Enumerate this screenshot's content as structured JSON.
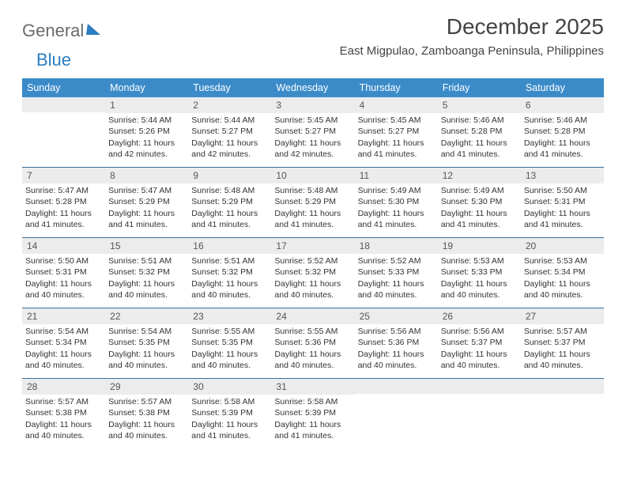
{
  "logo": {
    "text1": "General",
    "text2": "Blue"
  },
  "title": "December 2025",
  "subtitle": "East Migpulao, Zamboanga Peninsula, Philippines",
  "colors": {
    "header_bg": "#3b8bc9",
    "header_text": "#ffffff",
    "daynum_bg": "#ececec",
    "row_border": "#3b6f9a",
    "logo_gray": "#6b6b6b",
    "logo_blue": "#2a7dc0",
    "text": "#333333"
  },
  "dayNames": [
    "Sunday",
    "Monday",
    "Tuesday",
    "Wednesday",
    "Thursday",
    "Friday",
    "Saturday"
  ],
  "weeks": [
    [
      {
        "empty": true
      },
      {
        "num": "1",
        "sunrise": "Sunrise: 5:44 AM",
        "sunset": "Sunset: 5:26 PM",
        "daylight": "Daylight: 11 hours and 42 minutes."
      },
      {
        "num": "2",
        "sunrise": "Sunrise: 5:44 AM",
        "sunset": "Sunset: 5:27 PM",
        "daylight": "Daylight: 11 hours and 42 minutes."
      },
      {
        "num": "3",
        "sunrise": "Sunrise: 5:45 AM",
        "sunset": "Sunset: 5:27 PM",
        "daylight": "Daylight: 11 hours and 42 minutes."
      },
      {
        "num": "4",
        "sunrise": "Sunrise: 5:45 AM",
        "sunset": "Sunset: 5:27 PM",
        "daylight": "Daylight: 11 hours and 41 minutes."
      },
      {
        "num": "5",
        "sunrise": "Sunrise: 5:46 AM",
        "sunset": "Sunset: 5:28 PM",
        "daylight": "Daylight: 11 hours and 41 minutes."
      },
      {
        "num": "6",
        "sunrise": "Sunrise: 5:46 AM",
        "sunset": "Sunset: 5:28 PM",
        "daylight": "Daylight: 11 hours and 41 minutes."
      }
    ],
    [
      {
        "num": "7",
        "sunrise": "Sunrise: 5:47 AM",
        "sunset": "Sunset: 5:28 PM",
        "daylight": "Daylight: 11 hours and 41 minutes."
      },
      {
        "num": "8",
        "sunrise": "Sunrise: 5:47 AM",
        "sunset": "Sunset: 5:29 PM",
        "daylight": "Daylight: 11 hours and 41 minutes."
      },
      {
        "num": "9",
        "sunrise": "Sunrise: 5:48 AM",
        "sunset": "Sunset: 5:29 PM",
        "daylight": "Daylight: 11 hours and 41 minutes."
      },
      {
        "num": "10",
        "sunrise": "Sunrise: 5:48 AM",
        "sunset": "Sunset: 5:29 PM",
        "daylight": "Daylight: 11 hours and 41 minutes."
      },
      {
        "num": "11",
        "sunrise": "Sunrise: 5:49 AM",
        "sunset": "Sunset: 5:30 PM",
        "daylight": "Daylight: 11 hours and 41 minutes."
      },
      {
        "num": "12",
        "sunrise": "Sunrise: 5:49 AM",
        "sunset": "Sunset: 5:30 PM",
        "daylight": "Daylight: 11 hours and 41 minutes."
      },
      {
        "num": "13",
        "sunrise": "Sunrise: 5:50 AM",
        "sunset": "Sunset: 5:31 PM",
        "daylight": "Daylight: 11 hours and 41 minutes."
      }
    ],
    [
      {
        "num": "14",
        "sunrise": "Sunrise: 5:50 AM",
        "sunset": "Sunset: 5:31 PM",
        "daylight": "Daylight: 11 hours and 40 minutes."
      },
      {
        "num": "15",
        "sunrise": "Sunrise: 5:51 AM",
        "sunset": "Sunset: 5:32 PM",
        "daylight": "Daylight: 11 hours and 40 minutes."
      },
      {
        "num": "16",
        "sunrise": "Sunrise: 5:51 AM",
        "sunset": "Sunset: 5:32 PM",
        "daylight": "Daylight: 11 hours and 40 minutes."
      },
      {
        "num": "17",
        "sunrise": "Sunrise: 5:52 AM",
        "sunset": "Sunset: 5:32 PM",
        "daylight": "Daylight: 11 hours and 40 minutes."
      },
      {
        "num": "18",
        "sunrise": "Sunrise: 5:52 AM",
        "sunset": "Sunset: 5:33 PM",
        "daylight": "Daylight: 11 hours and 40 minutes."
      },
      {
        "num": "19",
        "sunrise": "Sunrise: 5:53 AM",
        "sunset": "Sunset: 5:33 PM",
        "daylight": "Daylight: 11 hours and 40 minutes."
      },
      {
        "num": "20",
        "sunrise": "Sunrise: 5:53 AM",
        "sunset": "Sunset: 5:34 PM",
        "daylight": "Daylight: 11 hours and 40 minutes."
      }
    ],
    [
      {
        "num": "21",
        "sunrise": "Sunrise: 5:54 AM",
        "sunset": "Sunset: 5:34 PM",
        "daylight": "Daylight: 11 hours and 40 minutes."
      },
      {
        "num": "22",
        "sunrise": "Sunrise: 5:54 AM",
        "sunset": "Sunset: 5:35 PM",
        "daylight": "Daylight: 11 hours and 40 minutes."
      },
      {
        "num": "23",
        "sunrise": "Sunrise: 5:55 AM",
        "sunset": "Sunset: 5:35 PM",
        "daylight": "Daylight: 11 hours and 40 minutes."
      },
      {
        "num": "24",
        "sunrise": "Sunrise: 5:55 AM",
        "sunset": "Sunset: 5:36 PM",
        "daylight": "Daylight: 11 hours and 40 minutes."
      },
      {
        "num": "25",
        "sunrise": "Sunrise: 5:56 AM",
        "sunset": "Sunset: 5:36 PM",
        "daylight": "Daylight: 11 hours and 40 minutes."
      },
      {
        "num": "26",
        "sunrise": "Sunrise: 5:56 AM",
        "sunset": "Sunset: 5:37 PM",
        "daylight": "Daylight: 11 hours and 40 minutes."
      },
      {
        "num": "27",
        "sunrise": "Sunrise: 5:57 AM",
        "sunset": "Sunset: 5:37 PM",
        "daylight": "Daylight: 11 hours and 40 minutes."
      }
    ],
    [
      {
        "num": "28",
        "sunrise": "Sunrise: 5:57 AM",
        "sunset": "Sunset: 5:38 PM",
        "daylight": "Daylight: 11 hours and 40 minutes."
      },
      {
        "num": "29",
        "sunrise": "Sunrise: 5:57 AM",
        "sunset": "Sunset: 5:38 PM",
        "daylight": "Daylight: 11 hours and 40 minutes."
      },
      {
        "num": "30",
        "sunrise": "Sunrise: 5:58 AM",
        "sunset": "Sunset: 5:39 PM",
        "daylight": "Daylight: 11 hours and 41 minutes."
      },
      {
        "num": "31",
        "sunrise": "Sunrise: 5:58 AM",
        "sunset": "Sunset: 5:39 PM",
        "daylight": "Daylight: 11 hours and 41 minutes."
      },
      {
        "empty": true
      },
      {
        "empty": true
      },
      {
        "empty": true
      }
    ]
  ]
}
